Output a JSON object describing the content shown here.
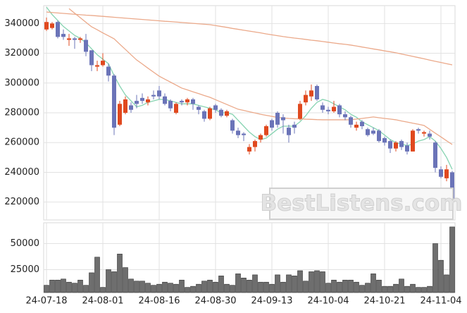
{
  "chart_data": {
    "type": "candlestick",
    "watermark": "BestListens.com",
    "categories": [
      "24-07-18",
      null,
      null,
      null,
      null,
      null,
      null,
      null,
      null,
      null,
      "24-08-01",
      null,
      null,
      null,
      null,
      null,
      null,
      null,
      null,
      null,
      "24-08-16",
      null,
      null,
      null,
      null,
      null,
      null,
      null,
      null,
      null,
      "24-08-30",
      null,
      null,
      null,
      null,
      null,
      null,
      null,
      null,
      null,
      "24-09-13",
      null,
      null,
      null,
      null,
      null,
      null,
      null,
      null,
      null,
      "24-10-04",
      null,
      null,
      null,
      null,
      null,
      null,
      null,
      null,
      null,
      "24-10-21",
      null,
      null,
      null,
      null,
      null,
      null,
      null,
      null,
      null,
      "24-11-04",
      null,
      null
    ],
    "open": [
      336000,
      337000,
      341000,
      333000,
      329000,
      330000,
      329000,
      329000,
      322000,
      311000,
      312000,
      311000,
      305000,
      272000,
      280000,
      285000,
      288000,
      290000,
      287000,
      292000,
      295000,
      291000,
      288000,
      280000,
      288000,
      287000,
      289000,
      284000,
      281000,
      276000,
      285000,
      282000,
      278000,
      275000,
      268000,
      266000,
      254000,
      257000,
      262000,
      265000,
      275000,
      280000,
      277000,
      270000,
      272000,
      276000,
      287000,
      291000,
      298000,
      285000,
      282000,
      281000,
      285000,
      279000,
      277000,
      270000,
      274000,
      269000,
      268000,
      268000,
      263000,
      261000,
      256000,
      261000,
      258000,
      254000,
      269000,
      266000,
      266000,
      260000,
      242000,
      236000,
      240000
    ],
    "high": [
      344000,
      341000,
      342000,
      336000,
      333000,
      331000,
      331000,
      333000,
      322000,
      315000,
      320000,
      313000,
      306000,
      288000,
      291000,
      287000,
      292000,
      293000,
      291000,
      295000,
      298000,
      293000,
      289000,
      287000,
      289000,
      290000,
      290000,
      285000,
      282000,
      284000,
      286000,
      283000,
      282000,
      276000,
      270000,
      267000,
      259000,
      262000,
      266000,
      272000,
      276000,
      281000,
      279000,
      272000,
      274000,
      288000,
      295000,
      299000,
      299000,
      287000,
      284000,
      288000,
      286000,
      281000,
      278000,
      274000,
      275000,
      270000,
      270000,
      269000,
      264000,
      262000,
      261000,
      262000,
      260000,
      269000,
      270000,
      268000,
      268000,
      261000,
      244000,
      245000,
      241000
    ],
    "low": [
      335000,
      336000,
      330000,
      329000,
      325000,
      323000,
      327000,
      318000,
      308000,
      308000,
      311000,
      301000,
      265000,
      271000,
      279000,
      280000,
      283000,
      286000,
      285000,
      289000,
      289000,
      285000,
      281000,
      279000,
      285000,
      285000,
      282000,
      279000,
      274000,
      275000,
      280000,
      277000,
      277000,
      266000,
      263000,
      261000,
      252000,
      254000,
      260000,
      264000,
      268000,
      270000,
      266000,
      260000,
      266000,
      275000,
      285000,
      288000,
      288000,
      280000,
      279000,
      280000,
      277000,
      275000,
      270000,
      268000,
      269000,
      264000,
      265000,
      260000,
      258000,
      253000,
      254000,
      255000,
      252000,
      254000,
      266000,
      264000,
      262000,
      240000,
      236000,
      234000,
      220000
    ],
    "close": [
      341000,
      340000,
      331000,
      331000,
      330000,
      329000,
      330000,
      321000,
      312000,
      312000,
      315000,
      305000,
      270000,
      286000,
      289000,
      282000,
      286000,
      288000,
      289000,
      291000,
      291000,
      286000,
      283000,
      286000,
      287000,
      289000,
      286000,
      282000,
      276000,
      283000,
      282000,
      278000,
      281000,
      268000,
      265000,
      265000,
      257000,
      261000,
      265000,
      271000,
      270000,
      272000,
      275000,
      265000,
      270000,
      286000,
      292000,
      295000,
      289000,
      282000,
      281000,
      284000,
      279000,
      277000,
      272000,
      272000,
      271000,
      265000,
      266000,
      261000,
      260000,
      256000,
      260000,
      257000,
      254000,
      268000,
      268000,
      267000,
      264000,
      243000,
      237000,
      242000,
      221000
    ],
    "up_color": "#e0491f",
    "down_color": "#6b74b8",
    "series": [
      {
        "color": "#86d3b1",
        "values": [
          351000,
          346000,
          342000,
          338000,
          335000,
          332000,
          330000,
          327000,
          323000,
          319000,
          316000,
          313000,
          305000,
          298000,
          292000,
          288000,
          284000,
          285000,
          287000,
          288000,
          289000,
          289000,
          288000,
          287000,
          286000,
          286000,
          286000,
          285000,
          284000,
          283000,
          282000,
          280000,
          280000,
          279000,
          275000,
          271000,
          267000,
          264000,
          262000,
          263000,
          266000,
          269000,
          271000,
          271000,
          271000,
          274000,
          278000,
          283000,
          287000,
          289000,
          288000,
          286000,
          284000,
          282000,
          279000,
          277000,
          274000,
          272000,
          270000,
          268000,
          265000,
          262000,
          260000,
          259000,
          258000,
          259000,
          261000,
          262000,
          264000,
          261000,
          256000,
          250000,
          242000
        ]
      },
      {
        "color": "#eba98a",
        "values": [
          null,
          null,
          null,
          null,
          350000,
          346900,
          343900,
          340800,
          337800,
          335800,
          333700,
          331700,
          329700,
          326100,
          322600,
          319000,
          315500,
          312800,
          310000,
          307300,
          304600,
          302600,
          300600,
          298600,
          296600,
          295400,
          294100,
          292900,
          291600,
          290400,
          288800,
          287200,
          285600,
          284000,
          282400,
          281600,
          280700,
          279900,
          279000,
          278300,
          277600,
          276900,
          276500,
          276200,
          276000,
          275900,
          275700,
          275600,
          275400,
          275300,
          275300,
          275300,
          275300,
          275300,
          275300,
          275800,
          276200,
          276700,
          277200,
          276700,
          276200,
          275800,
          275300,
          274500,
          273800,
          273000,
          272300,
          271500,
          268900,
          266300,
          263800,
          261200,
          258700
        ]
      },
      {
        "color": "#eba98a",
        "values": [
          347700,
          347400,
          347100,
          346800,
          346500,
          346200,
          345900,
          345600,
          345400,
          345100,
          344800,
          344500,
          344200,
          343900,
          343600,
          343300,
          343000,
          342700,
          342400,
          342100,
          341800,
          341500,
          341300,
          341000,
          340700,
          340400,
          340100,
          339800,
          339500,
          339200,
          338600,
          338000,
          337400,
          336700,
          336100,
          335500,
          334900,
          334300,
          333700,
          333000,
          332400,
          331800,
          331200,
          330700,
          330200,
          329800,
          329300,
          328800,
          328400,
          327900,
          327400,
          326900,
          326400,
          326000,
          325500,
          324900,
          324200,
          323600,
          322900,
          322300,
          321600,
          321000,
          320300,
          319500,
          318700,
          317900,
          317100,
          316300,
          315400,
          314600,
          313800,
          313000,
          312200
        ]
      }
    ],
    "ylim": [
      208000,
      352000
    ],
    "yticks": [
      220000,
      240000,
      260000,
      280000,
      300000,
      320000,
      340000
    ],
    "grid": true,
    "volume": {
      "color": "#6e6e6e",
      "values": [
        10000,
        15000,
        15000,
        16000,
        13000,
        12000,
        15000,
        10000,
        22000,
        37000,
        8000,
        25000,
        23000,
        40000,
        27000,
        16000,
        14000,
        14000,
        12000,
        10000,
        11000,
        13000,
        12000,
        11000,
        15000,
        8000,
        9000,
        11000,
        14000,
        15000,
        13000,
        19000,
        11000,
        10000,
        21000,
        17000,
        15000,
        20000,
        13000,
        13000,
        11000,
        20000,
        13000,
        20000,
        19000,
        24000,
        14000,
        23000,
        24000,
        23000,
        12000,
        15000,
        13000,
        15000,
        15000,
        13000,
        10000,
        12000,
        21000,
        15000,
        9000,
        9000,
        11000,
        16000,
        9000,
        11000,
        8000,
        8000,
        9000,
        50000,
        34000,
        20000,
        66000
      ],
      "ylim": [
        3000,
        70000
      ],
      "yticks": [
        25000,
        50000
      ]
    }
  }
}
